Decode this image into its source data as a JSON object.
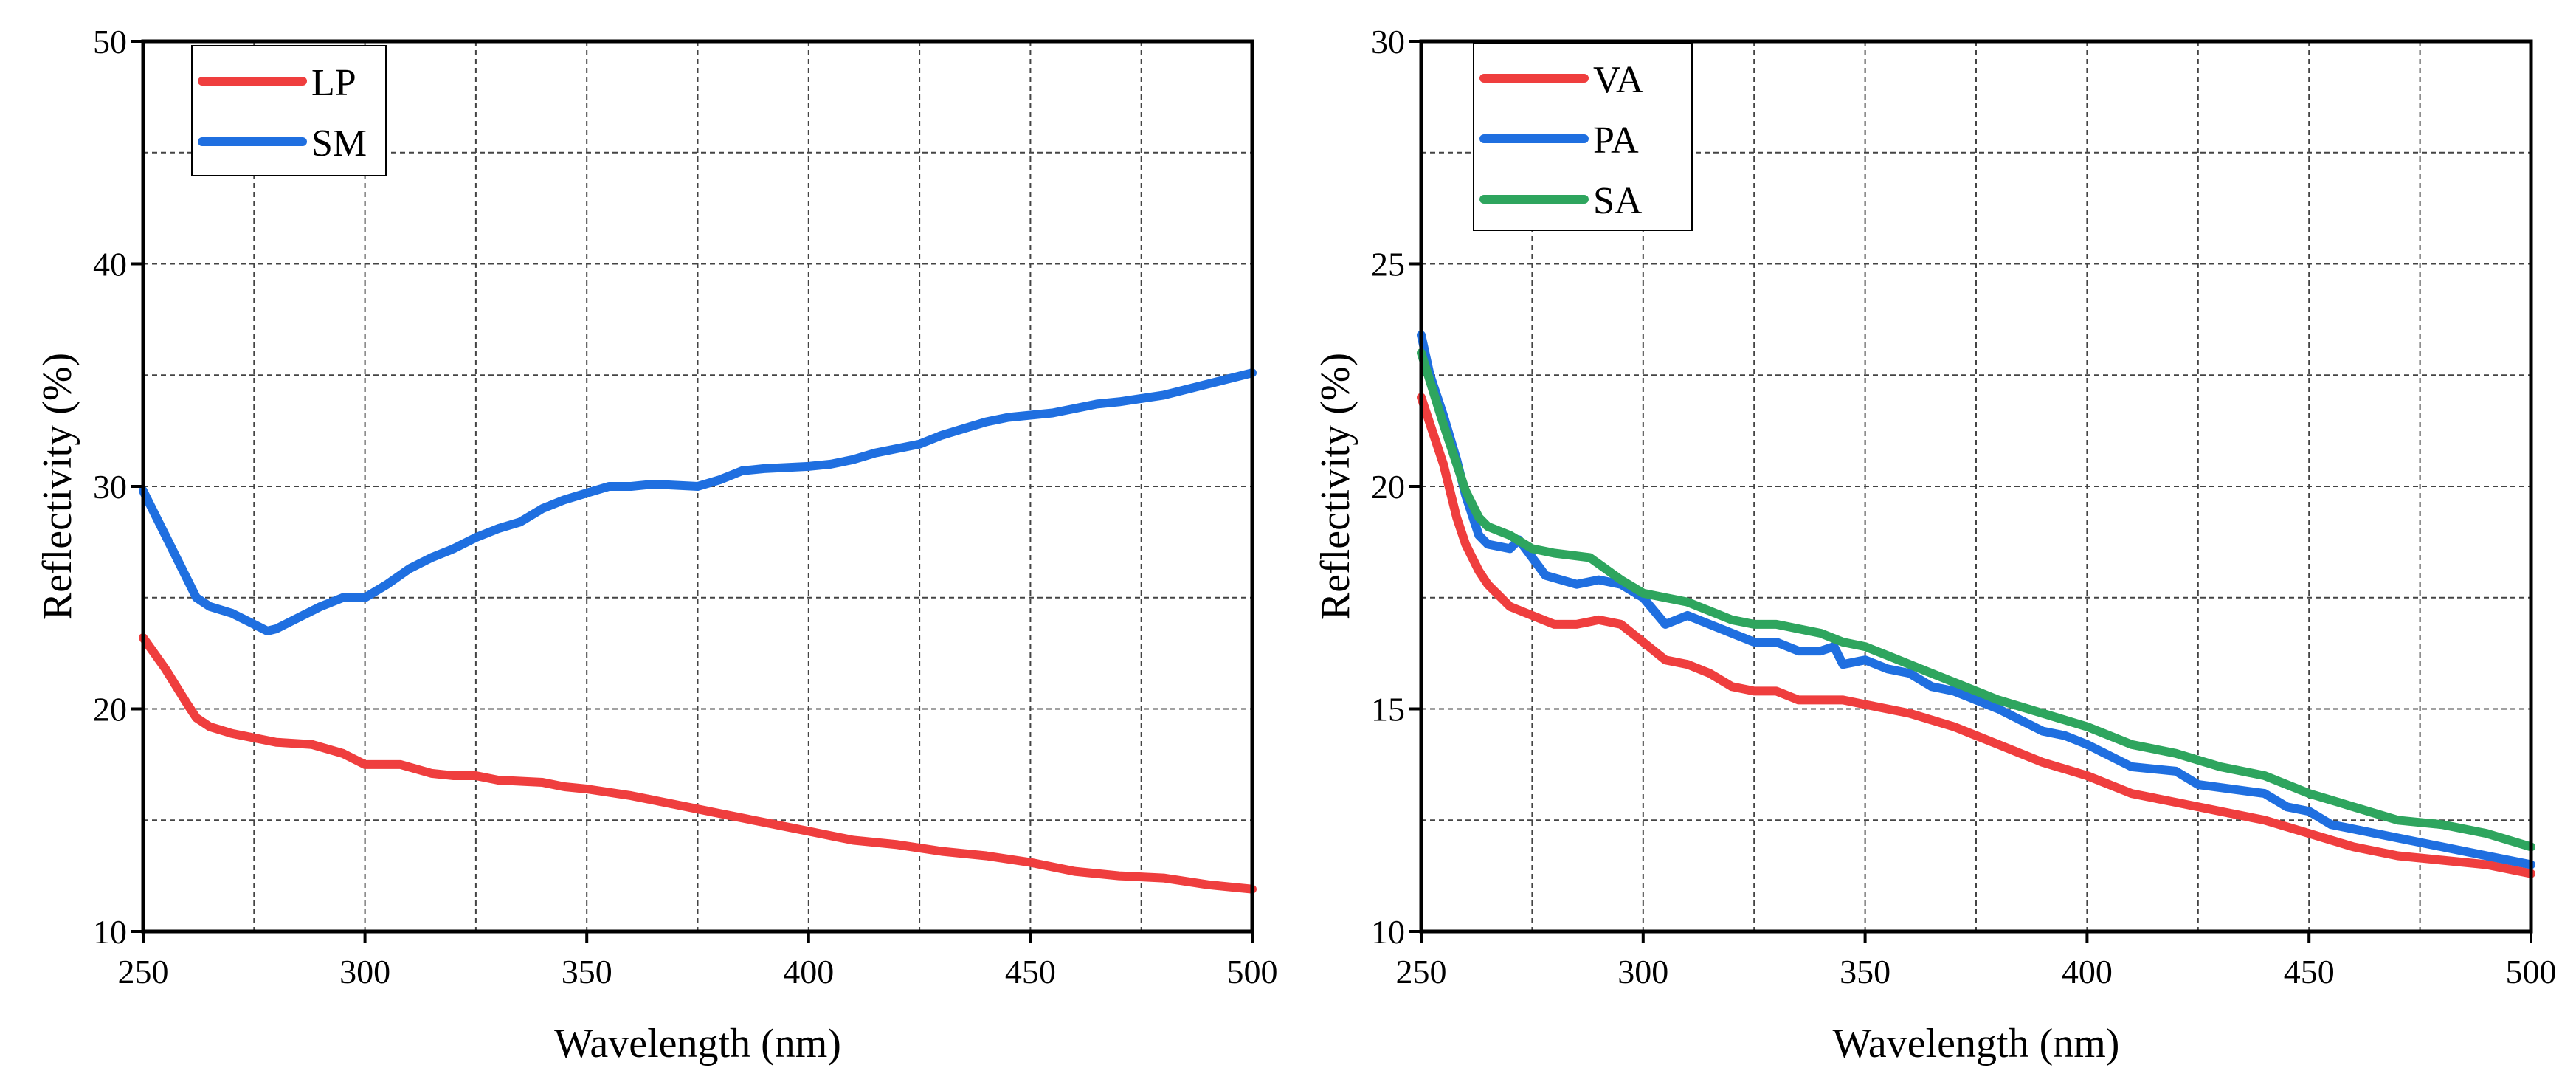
{
  "chart_data": [
    {
      "type": "line",
      "title": "",
      "xlabel": "Wavelength (nm)",
      "ylabel": "Reflectivity (%)",
      "xlim": [
        250,
        500
      ],
      "ylim": [
        10,
        50
      ],
      "xticks": [
        250,
        300,
        350,
        400,
        450,
        500
      ],
      "yticks": [
        10,
        20,
        30,
        40,
        50
      ],
      "x_minor_step": 25,
      "y_minor_step": 5,
      "grid": true,
      "legend_position": "top-left",
      "series": [
        {
          "name": "LP",
          "color": "#ef3e3e",
          "x": [
            250,
            255,
            260,
            262,
            265,
            270,
            275,
            280,
            288,
            295,
            300,
            308,
            315,
            320,
            325,
            330,
            340,
            345,
            350,
            360,
            370,
            380,
            390,
            400,
            410,
            420,
            430,
            440,
            450,
            460,
            470,
            480,
            490,
            500
          ],
          "y": [
            23.2,
            21.8,
            20.2,
            19.6,
            19.2,
            18.9,
            18.7,
            18.5,
            18.4,
            18.0,
            17.5,
            17.5,
            17.1,
            17.0,
            17.0,
            16.8,
            16.7,
            16.5,
            16.4,
            16.1,
            15.7,
            15.3,
            14.9,
            14.5,
            14.1,
            13.9,
            13.6,
            13.4,
            13.1,
            12.7,
            12.5,
            12.4,
            12.1,
            11.9
          ]
        },
        {
          "name": "SM",
          "color": "#1f6fe0",
          "x": [
            250,
            255,
            260,
            262,
            265,
            270,
            275,
            278,
            280,
            285,
            290,
            295,
            300,
            305,
            310,
            315,
            320,
            325,
            330,
            335,
            340,
            345,
            350,
            355,
            360,
            365,
            375,
            380,
            385,
            390,
            400,
            405,
            410,
            415,
            420,
            425,
            430,
            435,
            440,
            445,
            450,
            455,
            460,
            465,
            470,
            480,
            490,
            500
          ],
          "y": [
            29.8,
            27.8,
            25.8,
            25.0,
            24.6,
            24.3,
            23.8,
            23.5,
            23.6,
            24.1,
            24.6,
            25.0,
            25.0,
            25.6,
            26.3,
            26.8,
            27.2,
            27.7,
            28.1,
            28.4,
            29.0,
            29.4,
            29.7,
            30.0,
            30.0,
            30.1,
            30.0,
            30.3,
            30.7,
            30.8,
            30.9,
            31.0,
            31.2,
            31.5,
            31.7,
            31.9,
            32.3,
            32.6,
            32.9,
            33.1,
            33.2,
            33.3,
            33.5,
            33.7,
            33.8,
            34.1,
            34.6,
            35.1
          ]
        }
      ]
    },
    {
      "type": "line",
      "title": "",
      "xlabel": "Wavelength (nm)",
      "ylabel": "Reflectivity (%)",
      "xlim": [
        250,
        500
      ],
      "ylim": [
        10,
        30
      ],
      "xticks": [
        250,
        300,
        350,
        400,
        450,
        500
      ],
      "yticks": [
        10,
        15,
        20,
        25,
        30
      ],
      "x_minor_step": 25,
      "y_minor_step": 2.5,
      "grid": true,
      "legend_position": "top-left",
      "series": [
        {
          "name": "VA",
          "color": "#ef3e3e",
          "x": [
            250,
            252,
            255,
            258,
            260,
            263,
            265,
            270,
            275,
            280,
            285,
            290,
            295,
            300,
            305,
            310,
            315,
            320,
            325,
            330,
            335,
            340,
            345,
            350,
            355,
            360,
            370,
            380,
            390,
            400,
            410,
            420,
            430,
            440,
            450,
            460,
            470,
            480,
            490,
            500
          ],
          "y": [
            22.0,
            21.4,
            20.5,
            19.3,
            18.7,
            18.1,
            17.8,
            17.3,
            17.1,
            16.9,
            16.9,
            17.0,
            16.9,
            16.5,
            16.1,
            16.0,
            15.8,
            15.5,
            15.4,
            15.4,
            15.2,
            15.2,
            15.2,
            15.1,
            15.0,
            14.9,
            14.6,
            14.2,
            13.8,
            13.5,
            13.1,
            12.9,
            12.7,
            12.5,
            12.2,
            11.9,
            11.7,
            11.6,
            11.5,
            11.3
          ]
        },
        {
          "name": "PA",
          "color": "#1f6fe0",
          "x": [
            250,
            252,
            255,
            258,
            260,
            263,
            265,
            270,
            272,
            275,
            278,
            285,
            290,
            295,
            300,
            305,
            310,
            315,
            320,
            325,
            330,
            335,
            340,
            343,
            345,
            350,
            355,
            360,
            365,
            370,
            380,
            390,
            395,
            400,
            410,
            420,
            425,
            440,
            445,
            450,
            455,
            460,
            470,
            480,
            490,
            500
          ],
          "y": [
            23.4,
            22.5,
            21.6,
            20.6,
            19.8,
            18.9,
            18.7,
            18.6,
            18.8,
            18.4,
            18.0,
            17.8,
            17.9,
            17.8,
            17.5,
            16.9,
            17.1,
            16.9,
            16.7,
            16.5,
            16.5,
            16.3,
            16.3,
            16.4,
            16.0,
            16.1,
            15.9,
            15.8,
            15.5,
            15.4,
            15.0,
            14.5,
            14.4,
            14.2,
            13.7,
            13.6,
            13.3,
            13.1,
            12.8,
            12.7,
            12.4,
            12.3,
            12.1,
            11.9,
            11.7,
            11.5
          ]
        },
        {
          "name": "SA",
          "color": "#2ea55e",
          "x": [
            250,
            255,
            260,
            263,
            265,
            270,
            275,
            280,
            288,
            295,
            300,
            305,
            310,
            315,
            320,
            325,
            330,
            335,
            340,
            345,
            350,
            355,
            360,
            365,
            370,
            380,
            390,
            400,
            410,
            420,
            430,
            440,
            450,
            460,
            470,
            480,
            490,
            500
          ],
          "y": [
            23.0,
            21.4,
            19.9,
            19.3,
            19.1,
            18.9,
            18.6,
            18.5,
            18.4,
            17.9,
            17.6,
            17.5,
            17.4,
            17.2,
            17.0,
            16.9,
            16.9,
            16.8,
            16.7,
            16.5,
            16.4,
            16.2,
            16.0,
            15.8,
            15.6,
            15.2,
            14.9,
            14.6,
            14.2,
            14.0,
            13.7,
            13.5,
            13.1,
            12.8,
            12.5,
            12.4,
            12.2,
            11.9
          ]
        }
      ]
    }
  ]
}
